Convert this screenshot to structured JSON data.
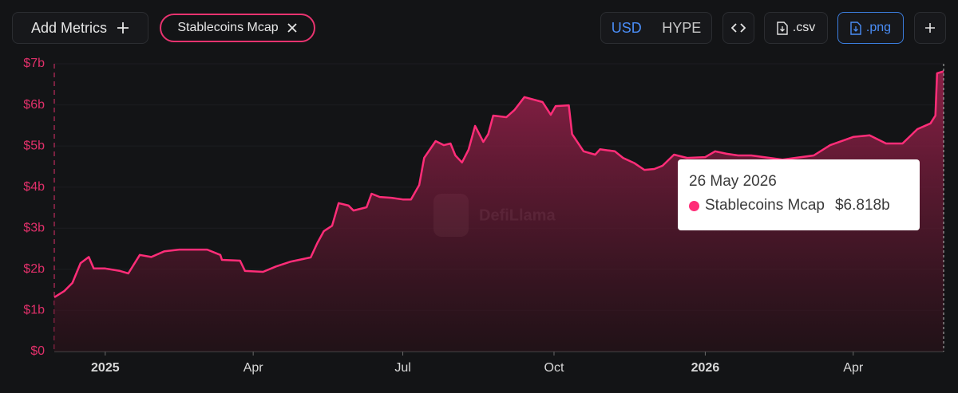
{
  "toolbar": {
    "add_metrics": "Add Metrics",
    "currencies": [
      "USD",
      "HYPE"
    ],
    "csv": ".csv",
    "png": ".png"
  },
  "chart_data": {
    "type": "line",
    "watermark": "DefiLlama",
    "x": [
      "2024-12-01",
      "2024-12-07",
      "2024-12-12",
      "2024-12-17",
      "2024-12-22",
      "2024-12-25",
      "2025-01-01",
      "2025-01-10",
      "2025-01-15",
      "2025-01-22",
      "2025-01-29",
      "2025-02-06",
      "2025-02-15",
      "2025-03-04",
      "2025-03-12",
      "2025-03-13",
      "2025-03-24",
      "2025-03-27",
      "2025-04-07",
      "2025-04-15",
      "2025-04-24",
      "2025-05-06",
      "2025-05-10",
      "2025-05-14",
      "2025-05-19",
      "2025-05-23",
      "2025-05-29",
      "2025-06-01",
      "2025-06-09",
      "2025-06-12",
      "2025-06-17",
      "2025-06-24",
      "2025-07-01",
      "2025-07-06",
      "2025-07-11",
      "2025-07-14",
      "2025-07-21",
      "2025-07-26",
      "2025-07-30",
      "2025-08-02",
      "2025-08-06",
      "2025-08-10",
      "2025-08-14",
      "2025-08-19",
      "2025-08-22",
      "2025-08-25",
      "2025-09-02",
      "2025-09-07",
      "2025-09-13",
      "2025-09-24",
      "2025-09-29",
      "2025-10-02",
      "2025-10-10",
      "2025-10-12",
      "2025-10-19",
      "2025-10-26",
      "2025-10-29",
      "2025-11-07",
      "2025-11-12",
      "2025-11-19",
      "2025-11-25",
      "2025-12-01",
      "2025-12-06",
      "2025-12-13",
      "2025-12-21",
      "2026-01-01",
      "2026-01-07",
      "2026-01-14",
      "2026-01-21",
      "2026-01-29",
      "2026-02-17",
      "2026-03-08",
      "2026-03-18",
      "2026-04-01",
      "2026-04-11",
      "2026-04-21",
      "2026-05-01",
      "2026-05-10",
      "2026-05-18",
      "2026-05-21",
      "2026-05-22",
      "2026-05-26"
    ],
    "series": [
      {
        "name": "Stablecoins Mcap",
        "color": "#ff2d78",
        "values": [
          1320000000.0,
          1470000000.0,
          1670000000.0,
          2150000000.0,
          2300000000.0,
          2020000000.0,
          2020000000.0,
          1960000000.0,
          1900000000.0,
          2350000000.0,
          2300000000.0,
          2440000000.0,
          2480000000.0,
          2480000000.0,
          2350000000.0,
          2230000000.0,
          2210000000.0,
          1960000000.0,
          1940000000.0,
          2070000000.0,
          2190000000.0,
          2290000000.0,
          2640000000.0,
          2930000000.0,
          3060000000.0,
          3610000000.0,
          3550000000.0,
          3430000000.0,
          3510000000.0,
          3840000000.0,
          3760000000.0,
          3740000000.0,
          3700000000.0,
          3700000000.0,
          4050000000.0,
          4710000000.0,
          5120000000.0,
          5020000000.0,
          5060000000.0,
          4770000000.0,
          4600000000.0,
          4910000000.0,
          5490000000.0,
          5100000000.0,
          5290000000.0,
          5740000000.0,
          5700000000.0,
          5880000000.0,
          6190000000.0,
          6070000000.0,
          5760000000.0,
          5970000000.0,
          5990000000.0,
          5290000000.0,
          4870000000.0,
          4790000000.0,
          4920000000.0,
          4870000000.0,
          4710000000.0,
          4580000000.0,
          4420000000.0,
          4440000000.0,
          4520000000.0,
          4790000000.0,
          4710000000.0,
          4730000000.0,
          4870000000.0,
          4810000000.0,
          4770000000.0,
          4770000000.0,
          4670000000.0,
          4770000000.0,
          5020000000.0,
          5220000000.0,
          5260000000.0,
          5060000000.0,
          5060000000.0,
          5410000000.0,
          5550000000.0,
          5740000000.0,
          6770000000.0,
          6818000000.0
        ],
        "value_labels": [
          null,
          null,
          null,
          null,
          null,
          null,
          null,
          null,
          null,
          null,
          null,
          null,
          null,
          null,
          null,
          null,
          null,
          null,
          null,
          null,
          null,
          null,
          null,
          null,
          null,
          null,
          null,
          null,
          null,
          null,
          null,
          null,
          null,
          null,
          null,
          null,
          null,
          null,
          null,
          null,
          null,
          null,
          null,
          null,
          null,
          null,
          null,
          null,
          null,
          null,
          null,
          null,
          null,
          null,
          null,
          null,
          null,
          null,
          null,
          null,
          null,
          null,
          null,
          null,
          null,
          null,
          null,
          null,
          null,
          null,
          null,
          null,
          null,
          null,
          null,
          null,
          null,
          null,
          null,
          null,
          null,
          "$6.818b"
        ]
      }
    ],
    "tooltip_date": "26 May 2026",
    "xlim": [
      "2024-12-01",
      "2026-05-26"
    ],
    "xticks": [
      {
        "value": "2025-01-01",
        "label": "2025"
      },
      {
        "value": "2025-04-01",
        "label": "Apr"
      },
      {
        "value": "2025-07-01",
        "label": "Jul"
      },
      {
        "value": "2025-10-01",
        "label": "Oct"
      },
      {
        "value": "2026-01-01",
        "label": "2026"
      },
      {
        "value": "2026-04-01",
        "label": "Apr"
      }
    ],
    "ylim": [
      0,
      7000000000.0
    ],
    "yticks": [
      {
        "value": 0,
        "label": "$0"
      },
      {
        "value": 1000000000.0,
        "label": "$1b"
      },
      {
        "value": 2000000000.0,
        "label": "$2b"
      },
      {
        "value": 3000000000.0,
        "label": "$3b"
      },
      {
        "value": 4000000000.0,
        "label": "$4b"
      },
      {
        "value": 5000000000.0,
        "label": "$5b"
      },
      {
        "value": 6000000000.0,
        "label": "$6b"
      },
      {
        "value": 7000000000.0,
        "label": "$7b"
      }
    ],
    "grid": true
  }
}
